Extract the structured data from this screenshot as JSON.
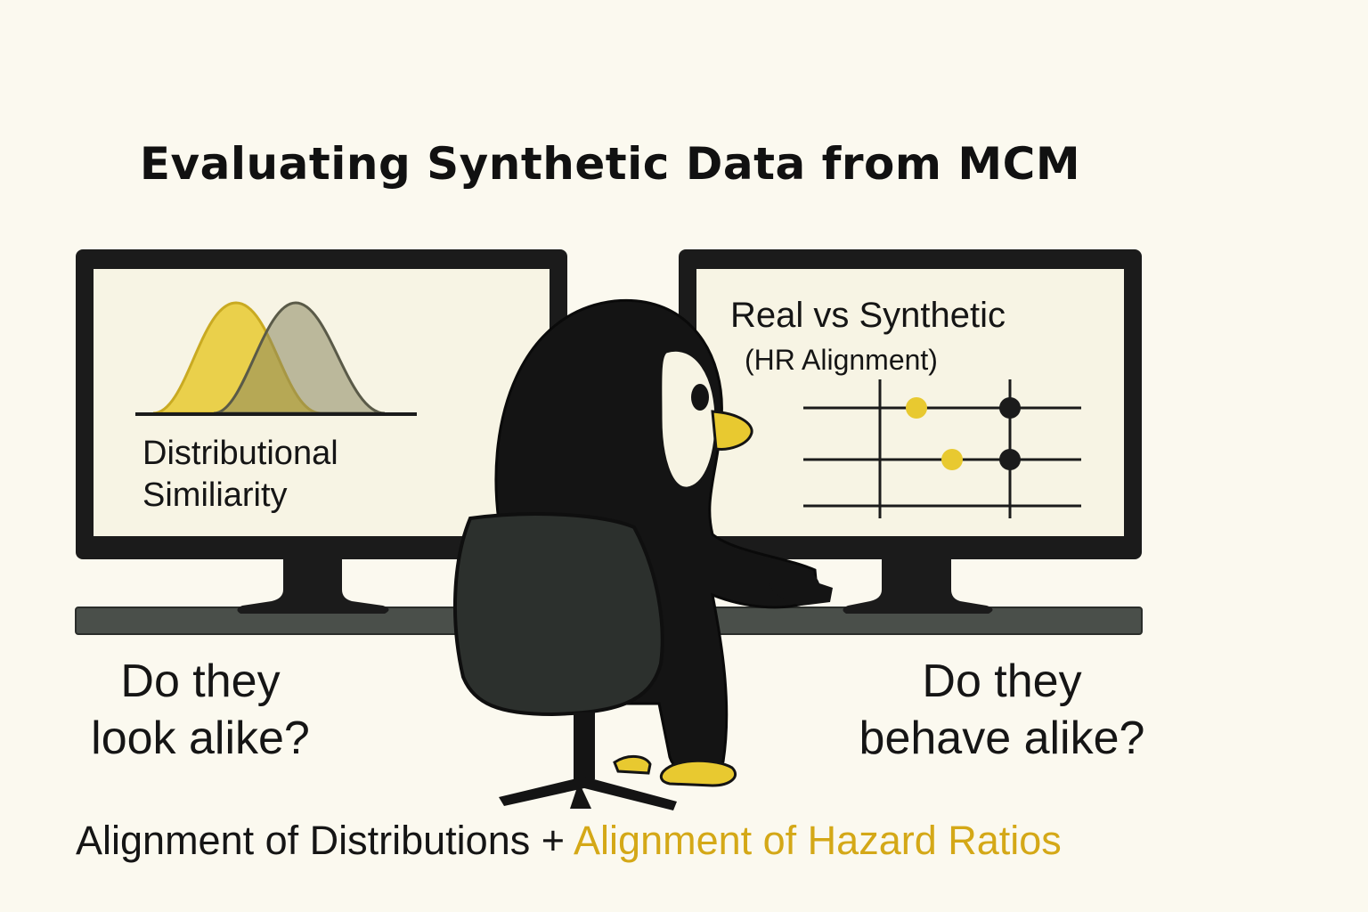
{
  "title": "Evaluating Synthetic Data from MCM",
  "left_monitor": {
    "label_line1": "Distributional",
    "label_line2": "Similiarity"
  },
  "right_monitor": {
    "title": "Real vs Synthetic",
    "subtitle": "(HR Alignment)"
  },
  "left_question": {
    "line1": "Do they",
    "line2": "look alike?"
  },
  "right_question": {
    "line1": "Do they",
    "line2": "behave alike?"
  },
  "bottom": {
    "part1": "Alignment of Distributions + ",
    "part2": "Alignment of Hazard Ratios"
  },
  "colors": {
    "background": "#fbf9ef",
    "yellow": "#e8c930",
    "accent_text": "#d4a817",
    "monitor": "#1b1b1b",
    "desk": "#4a4f4a",
    "chair": "#2c302d"
  },
  "icons": [
    "penguin-character",
    "office-chair",
    "desk",
    "monitor-left",
    "monitor-right",
    "bell-curve-chart",
    "dot-plot-chart"
  ]
}
